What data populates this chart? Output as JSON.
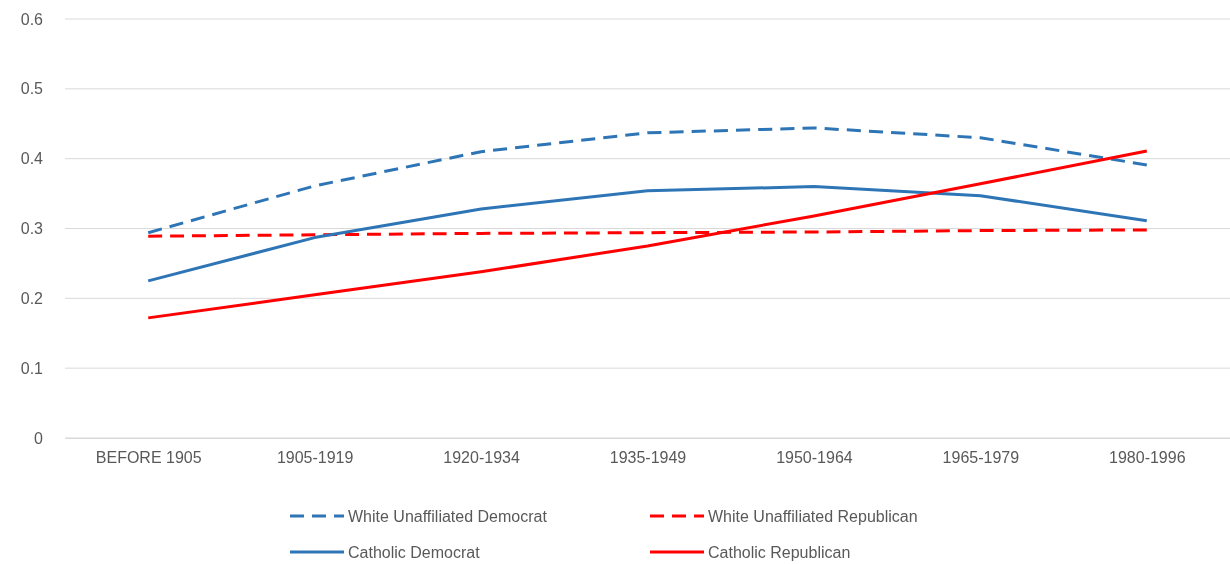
{
  "chart_data": {
    "type": "line",
    "categories": [
      "BEFORE 1905",
      "1905-1919",
      "1920-1934",
      "1935-1949",
      "1950-1964",
      "1965-1979",
      "1980-1996"
    ],
    "ylim": [
      0,
      0.6
    ],
    "yticks": [
      0,
      0.1,
      0.2,
      0.3,
      0.4,
      0.5,
      0.6
    ],
    "grid": "y",
    "legend": "bottom",
    "marker": "none",
    "series": [
      {
        "name": "White Unaffiliated Democrat",
        "color": "#2e75b6",
        "line_style": "dashed",
        "values": [
          0.294,
          0.361,
          0.41,
          0.437,
          0.444,
          0.43,
          0.391
        ]
      },
      {
        "name": "White Unaffiliated Republican",
        "color": "#ff0000",
        "line_style": "dashed",
        "values": [
          0.289,
          0.291,
          0.293,
          0.294,
          0.295,
          0.297,
          0.298
        ]
      },
      {
        "name": "Catholic Democrat",
        "color": "#2e75b6",
        "line_style": "solid",
        "values": [
          0.225,
          0.287,
          0.328,
          0.354,
          0.36,
          0.347,
          0.311
        ]
      },
      {
        "name": "Catholic Republican",
        "color": "#ff0000",
        "line_style": "solid",
        "values": [
          0.172,
          0.205,
          0.238,
          0.275,
          0.318,
          0.364,
          0.411
        ]
      }
    ]
  }
}
